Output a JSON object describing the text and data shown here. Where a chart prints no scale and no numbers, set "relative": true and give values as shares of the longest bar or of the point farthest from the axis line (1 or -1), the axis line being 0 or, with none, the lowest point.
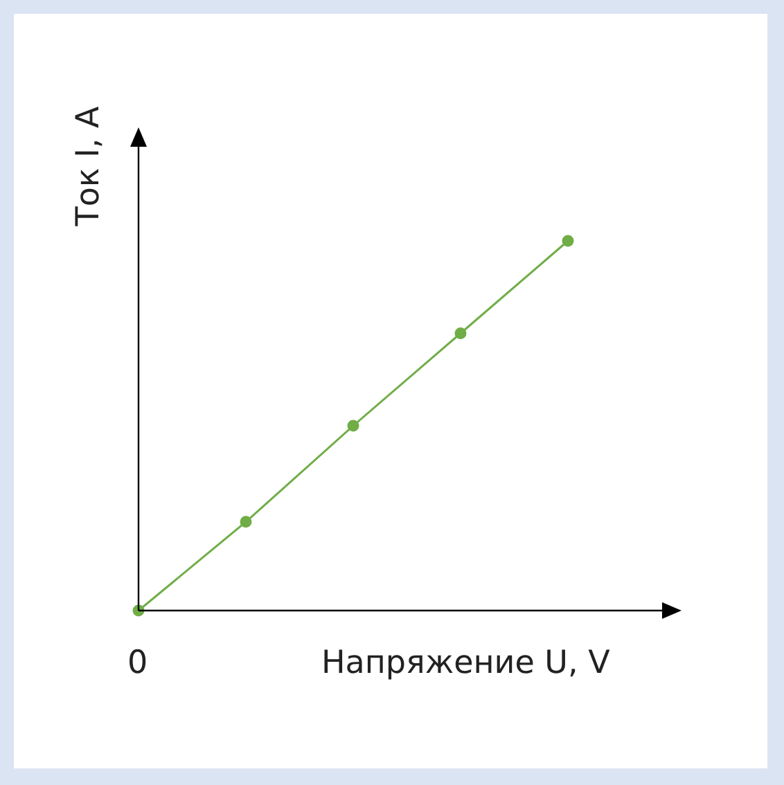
{
  "chart_data": {
    "type": "line",
    "relative": true,
    "xlabel": "Напряжение U, V",
    "ylabel": "Ток I, A",
    "annotations": [
      "0"
    ],
    "categories": [
      null,
      null,
      null,
      null,
      null
    ],
    "marker": "circle",
    "series": [
      {
        "color": "#70ad47",
        "values": [
          0,
          0.24,
          0.5,
          0.75,
          1
        ]
      }
    ]
  }
}
